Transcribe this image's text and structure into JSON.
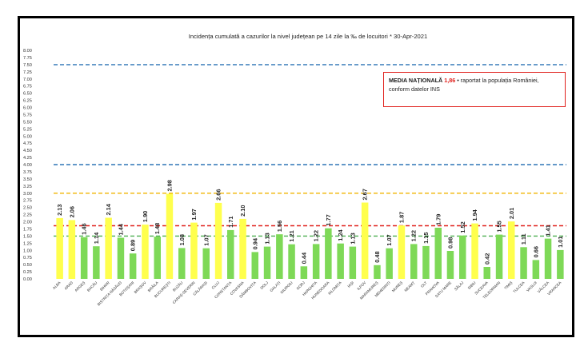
{
  "chart_data": {
    "type": "bar",
    "title": "Incidența cumulată a cazurilor la nivel județean pe 14 zile la ‰ de locuitori *  30-Apr-2021",
    "xlabel": "",
    "ylabel": "",
    "ylim": [
      0,
      8
    ],
    "yticks": [
      "0.00",
      "0.25",
      "0.50",
      "0.75",
      "1.00",
      "1.25",
      "1.50",
      "1.75",
      "2.00",
      "2.25",
      "2.50",
      "2.75",
      "3.00",
      "3.25",
      "3.50",
      "3.75",
      "4.00",
      "4.25",
      "4.50",
      "4.75",
      "5.00",
      "5.25",
      "5.50",
      "5.75",
      "6.00",
      "6.25",
      "6.50",
      "6.75",
      "7.00",
      "7.25",
      "7.50",
      "7.75",
      "8.00"
    ],
    "categories": [
      "ALBA",
      "ARAD",
      "ARGEȘ",
      "BACĂU",
      "BIHOR",
      "BISTRIȚA NĂSĂUD",
      "BOTOȘANI",
      "BRAȘOV",
      "BRĂILA",
      "BUCUREȘTI",
      "BUZĂU",
      "CARAȘ-SEVERIN",
      "CĂLĂRAȘI",
      "CLUJ",
      "CONSTANȚA",
      "COVASNA",
      "DÂMBOVIȚA",
      "DOLJ",
      "GALAȚI",
      "GIURGIU",
      "GORJ",
      "HARGHITA",
      "HUNEDOARA",
      "IALOMIȚA",
      "IAȘI",
      "ILFOV",
      "MARAMUREȘ",
      "MEHEDINȚI",
      "MUREȘ",
      "NEAMȚ",
      "OLT",
      "PRAHOVA",
      "SATU MARE",
      "SĂLAJ",
      "SIBIU",
      "SUCEAVA",
      "TELEORMAN",
      "TIMIȘ",
      "TULCEA",
      "VASLUI",
      "VÂLCEA",
      "VRANCEA"
    ],
    "values": [
      2.13,
      2.06,
      1.46,
      1.14,
      2.14,
      1.44,
      0.89,
      1.9,
      1.48,
      2.98,
      1.08,
      1.97,
      1.07,
      2.66,
      1.71,
      2.1,
      0.94,
      1.13,
      1.56,
      1.21,
      0.44,
      1.22,
      1.77,
      1.24,
      1.13,
      2.67,
      0.48,
      1.07,
      1.87,
      1.22,
      1.15,
      1.79,
      0.98,
      1.52,
      1.94,
      0.42,
      1.55,
      2.01,
      1.11,
      0.66,
      1.41,
      1.01
    ],
    "value_labels": [
      "2.13",
      "2.06",
      "1.46",
      "1.14",
      "2.14",
      "1.44",
      "0.89",
      "1.90",
      "1.48",
      "2.98",
      "1.08",
      "1.97",
      "1.07",
      "2.66",
      "1.71",
      "2.10",
      "0.94",
      "1.13",
      "1.56",
      "1.21",
      "0.44",
      "1.22",
      "1.77",
      "1.24",
      "1.13",
      "2.67",
      "0.48",
      "1.07",
      "1.87",
      "1.22",
      "1.15",
      "1.79",
      "0.98",
      "1.52",
      "1.94",
      "0.42",
      "1.55",
      "2.01",
      "1.11",
      "0.66",
      "1.41",
      "1.01"
    ],
    "reference_lines": [
      {
        "name": "threshold-7.5",
        "value": 7.5,
        "color": "#2e75b6",
        "style": "dashed"
      },
      {
        "name": "threshold-4",
        "value": 4.0,
        "color": "#2e75b6",
        "style": "dashed"
      },
      {
        "name": "threshold-3",
        "value": 3.0,
        "color": "#f0b400",
        "style": "dashed"
      },
      {
        "name": "national-average",
        "value": 1.86,
        "color": "#e0201c",
        "style": "dashed"
      },
      {
        "name": "threshold-1.5",
        "value": 1.5,
        "color": "#4caf50",
        "style": "dashed"
      }
    ],
    "colors": {
      "bar_above": "#ffff4d",
      "bar_below": "#7ed957"
    },
    "grid": false,
    "legend": {
      "position": "top-right",
      "highlight": "MEDIA NAȚIONALĂ",
      "value": "1,86",
      "text_line1": " • raportat la populația României,",
      "text_line2": "conform datelor INS"
    }
  }
}
